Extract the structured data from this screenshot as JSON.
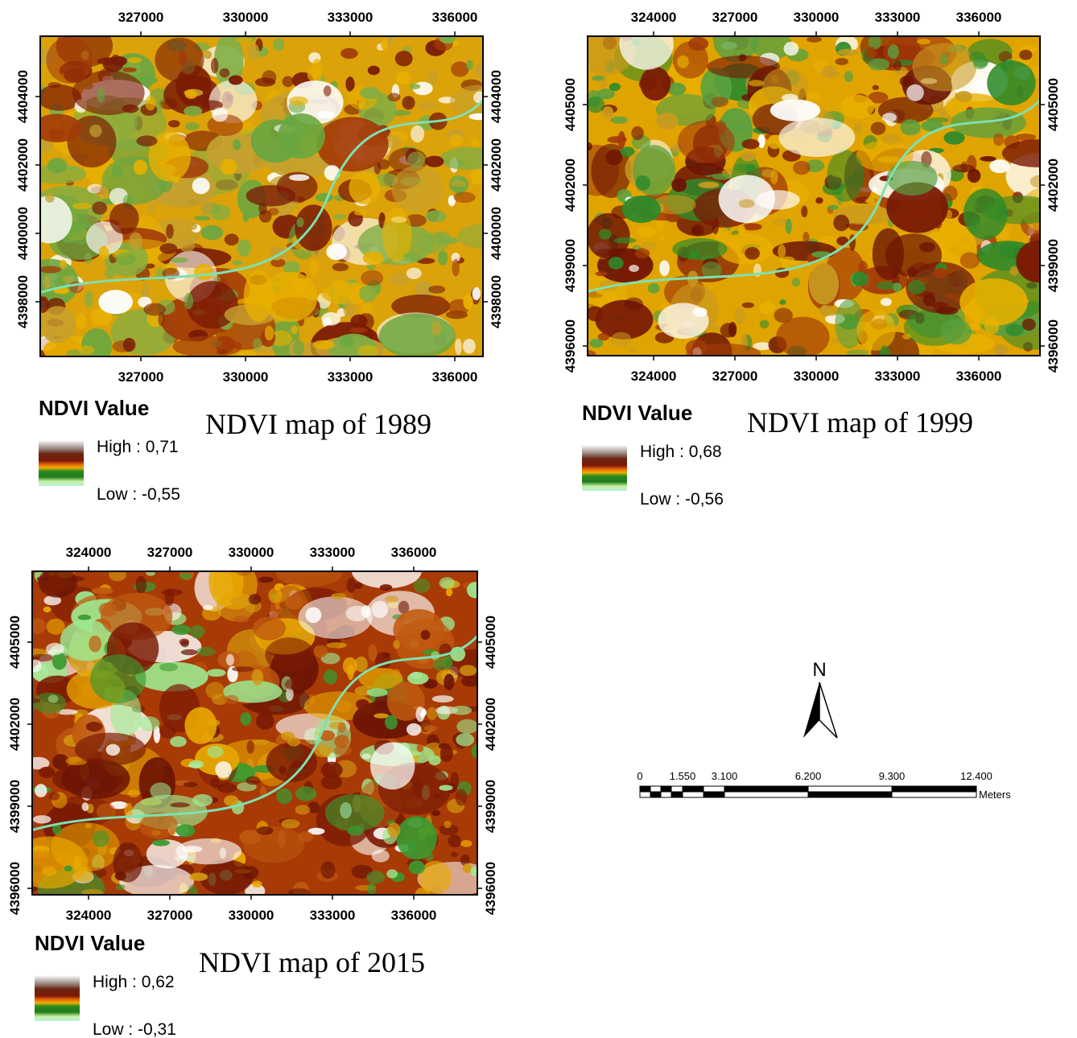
{
  "maps": [
    {
      "title": "NDVI map of 1989",
      "legend_title": "NDVI Value",
      "high_label": "High : 0,71",
      "low_label": "Low : -0,55",
      "x_ticks": [
        "327000",
        "330000",
        "333000",
        "336000"
      ],
      "y_ticks": [
        "4404000",
        "4402000",
        "4400000",
        "4398000"
      ]
    },
    {
      "title": "NDVI map of 1999",
      "legend_title": "NDVI Value",
      "high_label": "High : 0,68",
      "low_label": "Low : -0,56",
      "x_ticks": [
        "324000",
        "327000",
        "330000",
        "333000",
        "336000"
      ],
      "y_ticks": [
        "4405000",
        "4402000",
        "4399000",
        "4396000"
      ]
    },
    {
      "title": "NDVI map of 2015",
      "legend_title": "NDVI Value",
      "high_label": "High : 0,62",
      "low_label": "Low : -0,31",
      "x_ticks": [
        "324000",
        "327000",
        "330000",
        "333000",
        "336000"
      ],
      "y_ticks": [
        "4405000",
        "4402000",
        "4399000",
        "4396000"
      ]
    }
  ],
  "north_label": "N",
  "scale_bar": {
    "labels": [
      "0",
      "1.550",
      "3.100",
      "6.200",
      "9.300",
      "12.400"
    ],
    "unit": "Meters"
  }
}
